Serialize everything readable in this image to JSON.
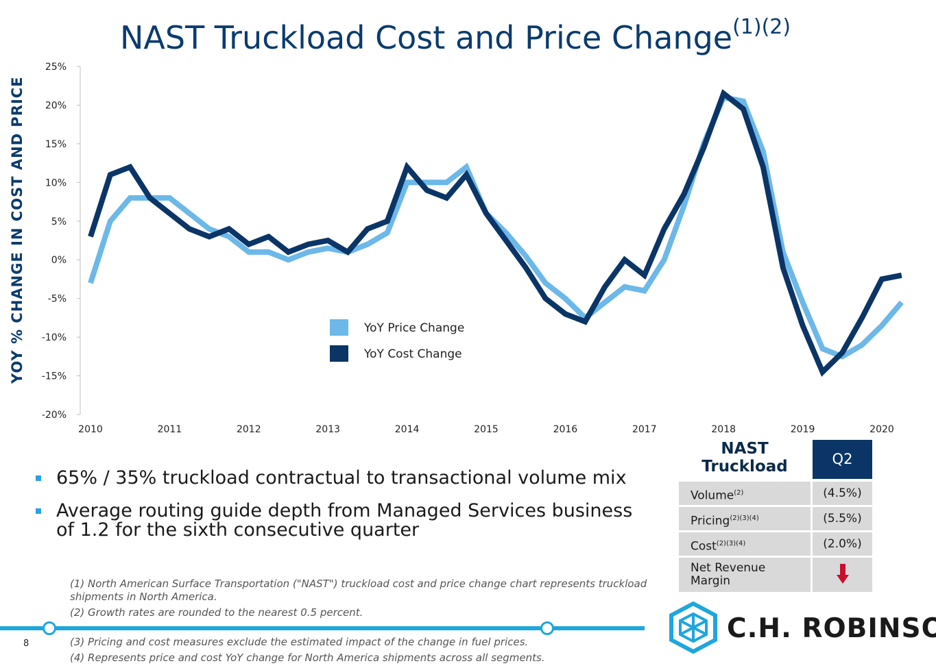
{
  "header": {
    "title": "NAST Truckload Cost and Price Change",
    "title_superscript": "(1)(2)"
  },
  "chart_data": {
    "type": "line",
    "title": "NAST Truckload Cost and Price Change",
    "xlabel": "",
    "ylabel": "YOY % CHANGE IN COST AND PRICE",
    "ylim": [
      -20,
      25
    ],
    "xlim": [
      2010,
      2020
    ],
    "yticks": [
      -20,
      -15,
      -10,
      -5,
      0,
      5,
      10,
      15,
      20,
      25
    ],
    "ytick_labels": [
      "-20%",
      "-15%",
      "-10%",
      "-5%",
      "0%",
      "5%",
      "10%",
      "15%",
      "20%",
      "25%"
    ],
    "xtick_labels": [
      "2010",
      "2011",
      "2012",
      "2013",
      "2014",
      "2015",
      "2016",
      "2017",
      "2018",
      "2019",
      "2020"
    ],
    "grid": false,
    "legend_position": "center",
    "x": [
      2010.0,
      2010.25,
      2010.5,
      2010.75,
      2011.0,
      2011.25,
      2011.5,
      2011.75,
      2012.0,
      2012.25,
      2012.5,
      2012.75,
      2013.0,
      2013.25,
      2013.5,
      2013.75,
      2014.0,
      2014.25,
      2014.5,
      2014.75,
      2015.0,
      2015.25,
      2015.5,
      2015.75,
      2016.0,
      2016.25,
      2016.5,
      2016.75,
      2017.0,
      2017.25,
      2017.5,
      2017.75,
      2018.0,
      2018.25,
      2018.5,
      2018.75,
      2019.0,
      2019.25,
      2019.5,
      2019.75,
      2020.0,
      2020.25
    ],
    "series": [
      {
        "name": "YoY Price Change",
        "color": "#6cb8e8",
        "values": [
          -3.0,
          5.0,
          8.0,
          8.0,
          8.0,
          6.0,
          4.0,
          3.0,
          1.0,
          1.0,
          0.0,
          1.0,
          1.5,
          1.0,
          2.0,
          3.5,
          10.0,
          10.0,
          10.0,
          12.0,
          6.0,
          3.5,
          0.5,
          -3.0,
          -5.0,
          -7.5,
          -5.5,
          -3.5,
          -4.0,
          0.0,
          7.0,
          15.0,
          21.0,
          20.5,
          14.0,
          1.0,
          -5.5,
          -11.5,
          -12.5,
          -11.0,
          -8.5,
          -5.5
        ]
      },
      {
        "name": "YoY Cost Change",
        "color": "#0a3566",
        "values": [
          3.0,
          11.0,
          12.0,
          8.0,
          6.0,
          4.0,
          3.0,
          4.0,
          2.0,
          3.0,
          1.0,
          2.0,
          2.5,
          1.0,
          4.0,
          5.0,
          12.0,
          9.0,
          8.0,
          11.0,
          6.0,
          2.5,
          -1.0,
          -5.0,
          -7.0,
          -8.0,
          -3.5,
          0.0,
          -2.0,
          4.0,
          8.5,
          14.5,
          21.5,
          19.5,
          12.0,
          -1.0,
          -8.5,
          -14.5,
          -12.0,
          -7.5,
          -2.5,
          -2.0
        ]
      }
    ]
  },
  "bullets": [
    "65% / 35% truckload contractual to transactional volume mix",
    "Average routing guide depth from Managed Services business of 1.2 for the sixth consecutive quarter"
  ],
  "footnotes": [
    "(1) North American Surface Transportation (\"NAST\") truckload cost and price change chart represents truckload shipments in North America.",
    "(2) Growth rates are rounded to the nearest 0.5 percent.",
    "(3) Pricing and cost measures exclude the estimated impact of the change in fuel prices.",
    "(4) Represents price and cost YoY change for North America shipments across all segments."
  ],
  "table": {
    "segment_line1": "NAST",
    "segment_line2": "Truckload",
    "period": "Q2",
    "rows": [
      {
        "label": "Volume",
        "sup": "(2)",
        "value": "(4.5%)"
      },
      {
        "label": "Pricing",
        "sup": "(2)(3)(4)",
        "value": "(5.5%)"
      },
      {
        "label": "Cost",
        "sup": "(2)(3)(4)",
        "value": "(2.0%)"
      }
    ],
    "last_row_line1": "Net Revenue",
    "last_row_line2": "Margin",
    "last_row_icon": "down-arrow-icon",
    "arrow_color": "#c8102e"
  },
  "footer": {
    "page_number": "8",
    "brand": "C.H. ROBINSON"
  }
}
